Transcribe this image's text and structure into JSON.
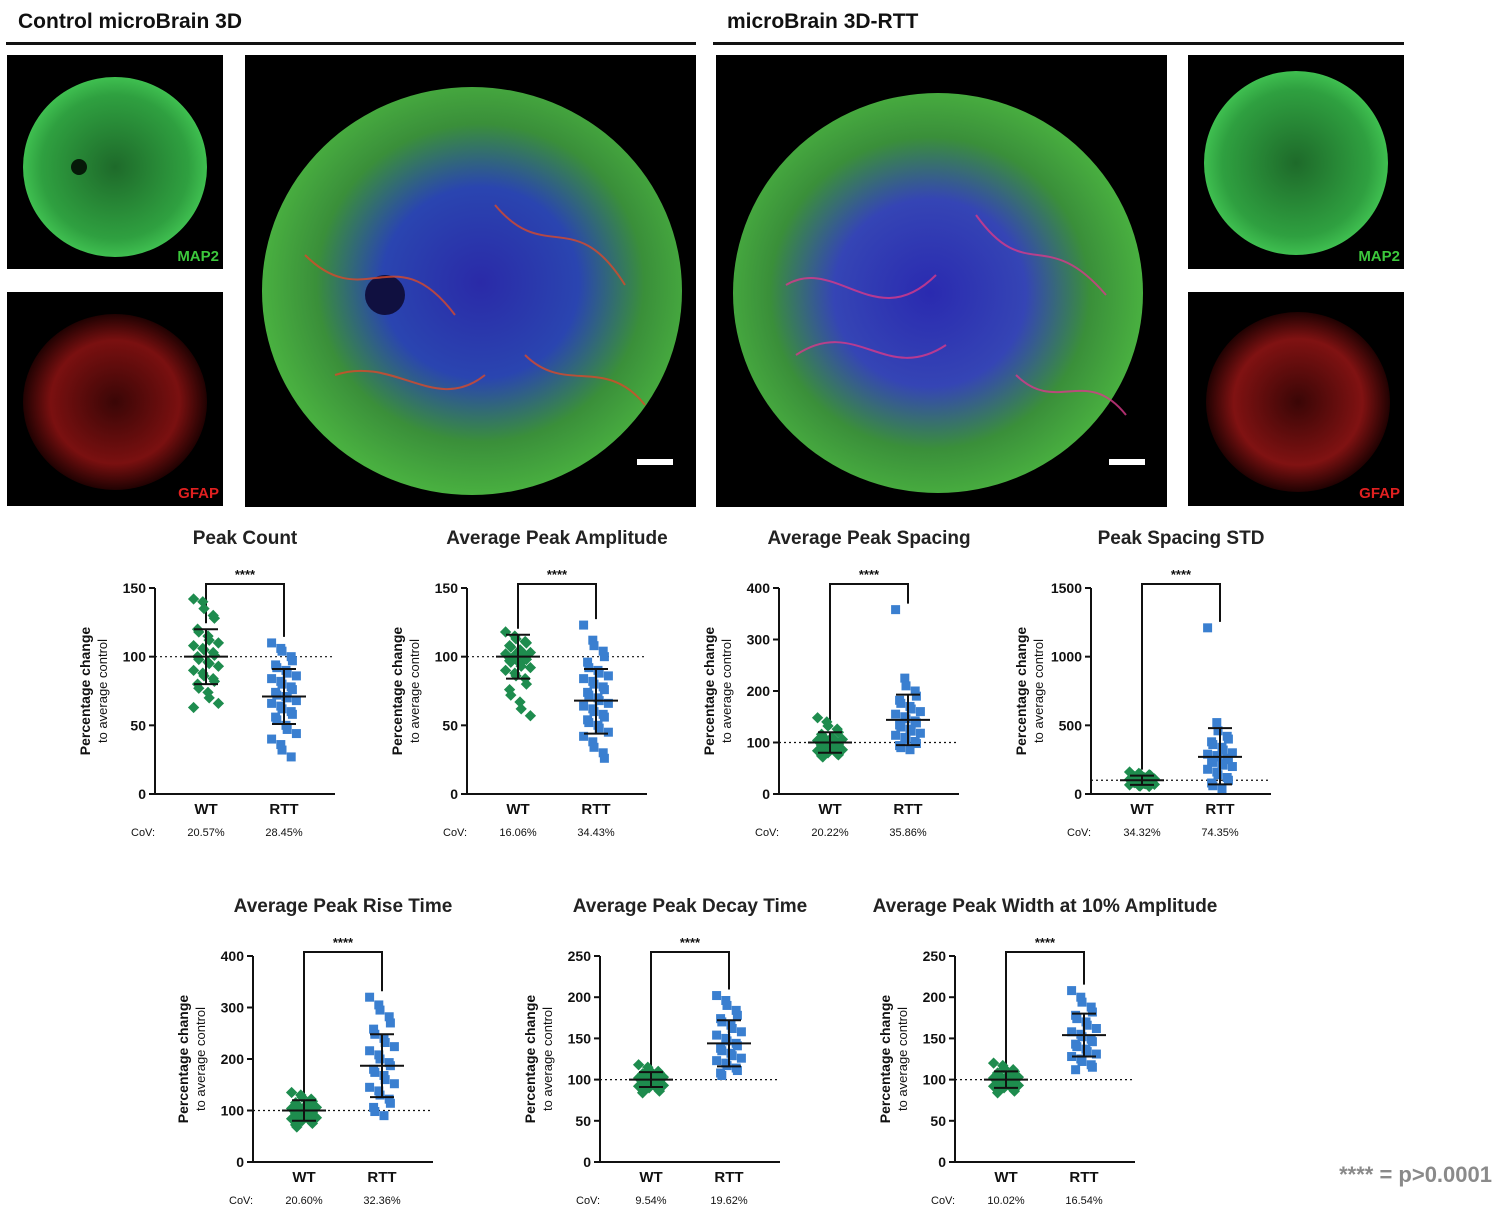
{
  "headers": {
    "control": "Control microBrain 3D",
    "rtt": "microBrain 3D-RTT"
  },
  "channels": {
    "map2": "MAP2",
    "gfap": "GFAP"
  },
  "colors": {
    "wt": "#1e8c4e",
    "rtt": "#3a7fd0",
    "map2_label": "#3cc83c",
    "gfap_label": "#e02020"
  },
  "footnote": "**** = p>0.0001",
  "chart_data": [
    {
      "type": "scatter",
      "title": "Peak Count",
      "ylabel": "Percentage change",
      "ylabel2": "to average control",
      "categories": [
        "WT",
        "RTT"
      ],
      "ylim": [
        0,
        150
      ],
      "yticks": [
        0,
        50,
        100,
        150
      ],
      "reference_line": 100,
      "significance": "****",
      "cov_label": "CoV:",
      "cov": [
        "20.57%",
        "28.45%"
      ],
      "series": [
        {
          "mean": 100,
          "sd_low": 80,
          "sd_high": 120,
          "values": [
            142,
            140,
            135,
            130,
            128,
            120,
            118,
            115,
            112,
            110,
            108,
            106,
            105,
            103,
            101,
            100,
            98,
            96,
            95,
            93,
            90,
            88,
            86,
            84,
            82,
            80,
            77,
            74,
            70,
            66,
            63
          ]
        },
        {
          "mean": 71,
          "sd_low": 51,
          "sd_high": 91,
          "values": [
            110,
            106,
            104,
            100,
            97,
            94,
            92,
            90,
            88,
            86,
            84,
            82,
            80,
            78,
            76,
            74,
            72,
            71,
            70,
            68,
            66,
            64,
            62,
            60,
            58,
            56,
            54,
            50,
            47,
            44,
            40,
            36,
            32,
            27
          ]
        }
      ]
    },
    {
      "type": "scatter",
      "title": "Average Peak Amplitude",
      "ylabel": "Percentage change",
      "ylabel2": "to average control",
      "categories": [
        "WT",
        "RTT"
      ],
      "ylim": [
        0,
        150
      ],
      "yticks": [
        0,
        50,
        100,
        150
      ],
      "reference_line": 100,
      "significance": "****",
      "cov_label": "CoV:",
      "cov": [
        "16.06%",
        "34.43%"
      ],
      "series": [
        {
          "mean": 100,
          "sd_low": 84,
          "sd_high": 116,
          "values": [
            118,
            115,
            113,
            111,
            110,
            108,
            107,
            105,
            104,
            103,
            102,
            101,
            100,
            99,
            98,
            97,
            96,
            95,
            93,
            92,
            90,
            88,
            86,
            84,
            80,
            76,
            72,
            67,
            62,
            57
          ]
        },
        {
          "mean": 68,
          "sd_low": 44,
          "sd_high": 91,
          "values": [
            123,
            112,
            108,
            104,
            100,
            96,
            92,
            90,
            88,
            86,
            84,
            82,
            80,
            78,
            76,
            74,
            72,
            70,
            68,
            66,
            64,
            62,
            60,
            58,
            56,
            54,
            52,
            50,
            48,
            45,
            42,
            38,
            34,
            30,
            26
          ]
        }
      ]
    },
    {
      "type": "scatter",
      "title": "Average Peak Spacing",
      "ylabel": "Percentage change",
      "ylabel2": "to average control",
      "categories": [
        "WT",
        "RTT"
      ],
      "ylim": [
        0,
        400
      ],
      "yticks": [
        0,
        100,
        200,
        300,
        400
      ],
      "reference_line": 100,
      "significance": "****",
      "cov_label": "CoV:",
      "cov": [
        "20.22%",
        "35.86%"
      ],
      "series": [
        {
          "mean": 100,
          "sd_low": 80,
          "sd_high": 120,
          "values": [
            148,
            140,
            132,
            126,
            120,
            116,
            112,
            110,
            108,
            106,
            104,
            102,
            100,
            98,
            96,
            94,
            92,
            90,
            88,
            86,
            84,
            82,
            80,
            78,
            76,
            74,
            72
          ]
        },
        {
          "mean": 144,
          "sd_low": 95,
          "sd_high": 193,
          "values": [
            358,
            225,
            210,
            200,
            190,
            182,
            176,
            170,
            165,
            160,
            155,
            150,
            146,
            142,
            138,
            134,
            130,
            126,
            122,
            118,
            114,
            110,
            106,
            102,
            98,
            94,
            90,
            86
          ]
        }
      ]
    },
    {
      "type": "scatter",
      "title": "Peak Spacing STD",
      "ylabel": "Percentage change",
      "ylabel2": "to average control",
      "categories": [
        "WT",
        "RTT"
      ],
      "ylim": [
        0,
        1500
      ],
      "yticks": [
        0,
        500,
        1000,
        1500
      ],
      "reference_line": 100,
      "significance": "****",
      "cov_label": "CoV:",
      "cov": [
        "34.32%",
        "74.35%"
      ],
      "series": [
        {
          "mean": 100,
          "sd_low": 66,
          "sd_high": 134,
          "values": [
            160,
            150,
            145,
            140,
            135,
            130,
            125,
            120,
            115,
            110,
            106,
            102,
            98,
            94,
            90,
            86,
            82,
            78,
            74,
            70,
            66,
            62,
            58,
            55
          ]
        },
        {
          "mean": 270,
          "sd_low": 70,
          "sd_high": 480,
          "values": [
            1210,
            520,
            460,
            420,
            400,
            380,
            360,
            340,
            320,
            300,
            290,
            280,
            270,
            260,
            250,
            240,
            230,
            220,
            210,
            200,
            180,
            160,
            140,
            120,
            100,
            80,
            60,
            40
          ]
        }
      ]
    },
    {
      "type": "scatter",
      "title": "Average Peak Rise Time",
      "ylabel": "Percentage change",
      "ylabel2": "to average control",
      "categories": [
        "WT",
        "RTT"
      ],
      "ylim": [
        0,
        400
      ],
      "yticks": [
        0,
        100,
        200,
        300,
        400
      ],
      "reference_line": 100,
      "significance": "****",
      "cov_label": "CoV:",
      "cov": [
        "20.60%",
        "32.36%"
      ],
      "series": [
        {
          "mean": 100,
          "sd_low": 80,
          "sd_high": 120,
          "values": [
            135,
            130,
            126,
            122,
            118,
            115,
            112,
            110,
            108,
            106,
            104,
            102,
            100,
            98,
            96,
            94,
            92,
            90,
            88,
            86,
            84,
            82,
            80,
            78,
            75,
            72,
            68
          ]
        },
        {
          "mean": 187,
          "sd_low": 126,
          "sd_high": 248,
          "values": [
            320,
            305,
            295,
            282,
            270,
            258,
            248,
            240,
            232,
            224,
            216,
            208,
            200,
            193,
            187,
            180,
            174,
            168,
            160,
            152,
            145,
            138,
            130,
            122,
            114,
            106,
            98,
            90
          ]
        }
      ]
    },
    {
      "type": "scatter",
      "title": "Average Peak Decay Time",
      "ylabel": "Percentage change",
      "ylabel2": "to average control",
      "categories": [
        "WT",
        "RTT"
      ],
      "ylim": [
        0,
        250
      ],
      "yticks": [
        0,
        50,
        100,
        150,
        200,
        250
      ],
      "reference_line": 100,
      "significance": "****",
      "cov_label": "CoV:",
      "cov": [
        "9.54%",
        "19.62%"
      ],
      "series": [
        {
          "mean": 100,
          "sd_low": 91,
          "sd_high": 109,
          "values": [
            118,
            115,
            112,
            110,
            108,
            107,
            106,
            105,
            104,
            103,
            102,
            101,
            100,
            99,
            98,
            97,
            96,
            95,
            94,
            93,
            92,
            91,
            90,
            88,
            86,
            84
          ]
        },
        {
          "mean": 144,
          "sd_low": 116,
          "sd_high": 172,
          "values": [
            202,
            196,
            190,
            184,
            178,
            174,
            170,
            166,
            162,
            158,
            154,
            150,
            147,
            144,
            141,
            138,
            135,
            132,
            129,
            126,
            123,
            120,
            117,
            114,
            111,
            108,
            105
          ]
        }
      ]
    },
    {
      "type": "scatter",
      "title": "Average Peak Width at 10% Amplitude",
      "ylabel": "Percentage change",
      "ylabel2": "to average control",
      "categories": [
        "WT",
        "RTT"
      ],
      "ylim": [
        0,
        250
      ],
      "yticks": [
        0,
        50,
        100,
        150,
        200,
        250
      ],
      "reference_line": 100,
      "significance": "****",
      "cov_label": "CoV:",
      "cov": [
        "10.02%",
        "16.54%"
      ],
      "series": [
        {
          "mean": 100,
          "sd_low": 90,
          "sd_high": 110,
          "values": [
            120,
            117,
            114,
            112,
            110,
            108,
            106,
            105,
            104,
            103,
            102,
            101,
            100,
            99,
            98,
            97,
            96,
            95,
            94,
            93,
            92,
            91,
            90,
            88,
            86,
            84
          ]
        },
        {
          "mean": 154,
          "sd_low": 128,
          "sd_high": 180,
          "values": [
            208,
            200,
            194,
            188,
            182,
            178,
            174,
            170,
            166,
            162,
            158,
            155,
            152,
            149,
            146,
            143,
            140,
            137,
            134,
            131,
            128,
            125,
            122,
            118,
            115,
            112
          ]
        }
      ]
    }
  ]
}
